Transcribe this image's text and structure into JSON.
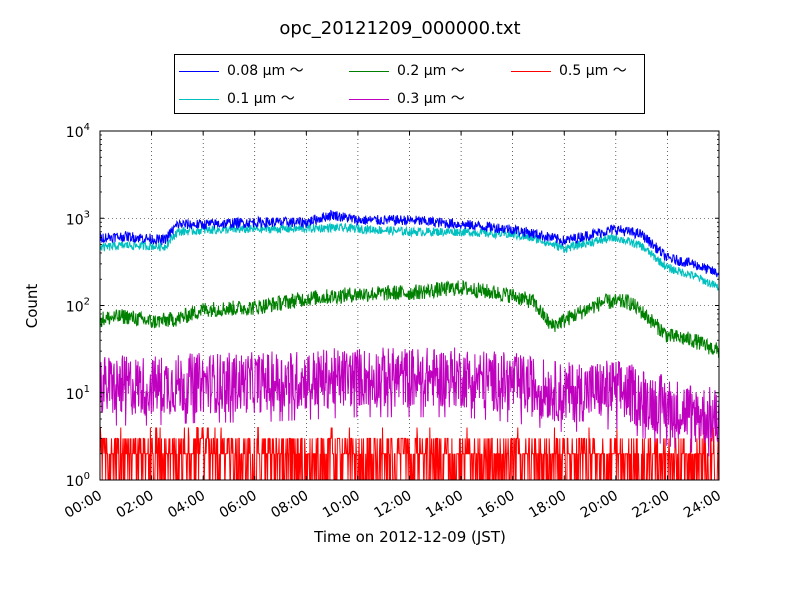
{
  "chart_data": {
    "type": "line",
    "title": "opc_20121209_000000.txt",
    "xlabel": "Time on 2012-12-09 (JST)",
    "ylabel": "Count",
    "x_ticks": [
      "00:00",
      "02:00",
      "04:00",
      "06:00",
      "08:00",
      "10:00",
      "12:00",
      "14:00",
      "16:00",
      "18:00",
      "20:00",
      "22:00",
      "24:00"
    ],
    "xlim_hours": [
      0,
      24
    ],
    "yscale": "log",
    "ylim": [
      1,
      10000
    ],
    "y_ticks": [
      {
        "base": "10",
        "exp": "0"
      },
      {
        "base": "10",
        "exp": "1"
      },
      {
        "base": "10",
        "exp": "2"
      },
      {
        "base": "10",
        "exp": "3"
      },
      {
        "base": "10",
        "exp": "4"
      }
    ],
    "grid": true,
    "legend_placement": "above plot, 3 columns",
    "series": [
      {
        "name": "0.08 μm ～",
        "color": "#0000ff",
        "x": [
          0,
          1,
          2,
          2.5,
          3,
          4,
          6,
          8,
          9,
          10,
          12,
          13,
          14,
          16,
          17,
          18,
          19,
          20,
          21,
          22,
          23,
          24
        ],
        "y": [
          600,
          620,
          580,
          560,
          850,
          850,
          900,
          900,
          1100,
          950,
          950,
          900,
          850,
          750,
          650,
          550,
          650,
          750,
          650,
          350,
          300,
          230
        ]
      },
      {
        "name": "0.1 μm ～",
        "color": "#00bfbf",
        "x": [
          0,
          1,
          2,
          2.5,
          3,
          4,
          6,
          8,
          9,
          10,
          12,
          13,
          14,
          16,
          17,
          18,
          19,
          20,
          21,
          22,
          23,
          24
        ],
        "y": [
          460,
          490,
          480,
          470,
          700,
          730,
          750,
          760,
          780,
          760,
          700,
          700,
          700,
          650,
          570,
          450,
          530,
          600,
          480,
          270,
          220,
          160
        ]
      },
      {
        "name": "0.2 μm ～",
        "color": "#008000",
        "x": [
          0,
          1,
          2,
          3,
          4,
          6,
          8,
          10,
          12,
          14,
          16,
          16.8,
          17.5,
          18.5,
          19.5,
          20.5,
          21,
          22,
          23,
          24
        ],
        "y": [
          70,
          75,
          65,
          70,
          90,
          95,
          120,
          135,
          140,
          160,
          130,
          110,
          58,
          80,
          110,
          110,
          85,
          45,
          40,
          30
        ]
      },
      {
        "name": "0.3 μm ～",
        "color": "#bf00bf",
        "x": [
          0,
          2,
          4,
          6,
          8,
          10,
          12,
          14,
          16,
          18,
          20,
          22,
          24
        ],
        "y": [
          12,
          12,
          13,
          13,
          14,
          15,
          15,
          15,
          13,
          10,
          11,
          7,
          5
        ]
      },
      {
        "name": "0.5 μm ～",
        "color": "#ff0000",
        "x": [
          0,
          2,
          4,
          6,
          8,
          10,
          12,
          14,
          16,
          18,
          20,
          22,
          24
        ],
        "y": [
          1.5,
          1.5,
          1.8,
          1.6,
          1.6,
          1.6,
          1.6,
          1.5,
          1.4,
          1.3,
          1.3,
          1.2,
          1.2
        ]
      }
    ]
  }
}
